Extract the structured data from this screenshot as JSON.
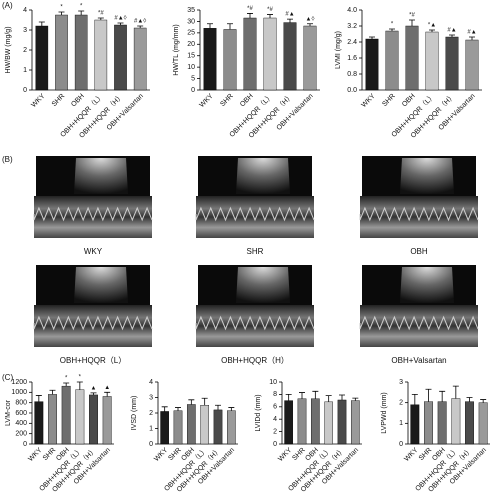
{
  "panels": [
    "(A)",
    "(B)",
    "(C)"
  ],
  "echo_labels": [
    "WKY",
    "SHR",
    "OBH",
    "OBH+HQQR（L）",
    "OBH+HQQR（H）",
    "OBH+Valsartan"
  ],
  "chart_data": [
    {
      "type": "bar",
      "ylabel": "HW/BW (mg/g)",
      "categories": [
        "WKY",
        "SHR",
        "OBH",
        "OBH+HQQR（L）",
        "OBH+HQQR（H）",
        "OBH+Valsartan"
      ],
      "values": [
        3.2,
        3.75,
        3.75,
        3.5,
        3.25,
        3.1
      ],
      "errors": [
        0.2,
        0.15,
        0.2,
        0.1,
        0.1,
        0.1
      ],
      "annotations": [
        "",
        "*",
        "*",
        "*#",
        "#▲◊",
        "#▲◊"
      ],
      "colors": [
        "#1a1a1a",
        "#8c8c8c",
        "#6e6e6e",
        "#c8c8c8",
        "#4a4a4a",
        "#9a9a9a"
      ],
      "ylim": [
        0,
        4
      ],
      "yticks": [
        0,
        1,
        2,
        3,
        4
      ]
    },
    {
      "type": "bar",
      "ylabel": "HW/TL (mg/mm)",
      "categories": [
        "WKY",
        "SHR",
        "OBH",
        "OBH+HQQR（L）",
        "OBH+HQQR（H）",
        "OBH+Valsartan"
      ],
      "values": [
        27,
        26.5,
        31.5,
        31.5,
        29.5,
        28
      ],
      "errors": [
        2,
        2.5,
        2,
        1.5,
        1.5,
        1
      ],
      "annotations": [
        "",
        "",
        "*#",
        "*#",
        "#▲",
        "▲◊"
      ],
      "colors": [
        "#1a1a1a",
        "#8c8c8c",
        "#6e6e6e",
        "#c8c8c8",
        "#4a4a4a",
        "#9a9a9a"
      ],
      "ylim": [
        0,
        35
      ],
      "yticks": [
        0,
        5,
        10,
        15,
        20,
        25,
        30,
        35
      ]
    },
    {
      "type": "bar",
      "ylabel": "LVMI (mg/g)",
      "categories": [
        "WKY",
        "SHR",
        "OBH",
        "OBH+HQQR（L）",
        "OBH+HQQR（H）",
        "OBH+Valsartan"
      ],
      "values": [
        2.55,
        2.95,
        3.2,
        2.9,
        2.65,
        2.5
      ],
      "errors": [
        0.1,
        0.1,
        0.3,
        0.1,
        0.1,
        0.15
      ],
      "annotations": [
        "",
        "*",
        "*#",
        "*▲",
        "#▲",
        "#▲"
      ],
      "colors": [
        "#1a1a1a",
        "#8c8c8c",
        "#6e6e6e",
        "#c8c8c8",
        "#4a4a4a",
        "#9a9a9a"
      ],
      "ylim": [
        0,
        4
      ],
      "yticks": [
        {
          "value": 0,
          "label": "0.0"
        },
        0.8,
        1.6,
        2.4,
        3.2,
        {
          "value": 4,
          "label": "4.0"
        }
      ]
    },
    {
      "type": "bar",
      "ylabel": "LVM-cor",
      "categories": [
        "WKY",
        "SHR",
        "OBH",
        "OBH+HQQR（L）",
        "OBH+HQQR（H）",
        "OBH+Valsartan"
      ],
      "values": [
        820,
        960,
        1120,
        1050,
        950,
        920
      ],
      "errors": [
        120,
        80,
        60,
        150,
        40,
        80
      ],
      "annotations": [
        "",
        "",
        "*",
        "*",
        "▲",
        "▲"
      ],
      "colors": [
        "#1a1a1a",
        "#8c8c8c",
        "#6e6e6e",
        "#c8c8c8",
        "#4a4a4a",
        "#9a9a9a"
      ],
      "ylim": [
        0,
        1200
      ],
      "yticks": [
        0,
        200,
        400,
        600,
        800,
        1000,
        1200
      ]
    },
    {
      "type": "bar",
      "ylabel": "IVSD (mm)",
      "categories": [
        "WKY",
        "SHR",
        "OBH",
        "OBH+HQQR（L）",
        "OBH+HQQR（H）",
        "OBH+Valsartan"
      ],
      "values": [
        2.1,
        2.15,
        2.55,
        2.5,
        2.2,
        2.15
      ],
      "errors": [
        0.3,
        0.2,
        0.3,
        0.45,
        0.3,
        0.2
      ],
      "colors": [
        "#1a1a1a",
        "#8c8c8c",
        "#6e6e6e",
        "#c8c8c8",
        "#4a4a4a",
        "#9a9a9a"
      ],
      "ylim": [
        0,
        4
      ],
      "yticks": [
        0,
        1,
        2,
        3,
        4
      ]
    },
    {
      "type": "bar",
      "ylabel": "LVIDd (mm)",
      "categories": [
        "WKY",
        "SHR",
        "OBH",
        "OBH+HQQR（L）",
        "OBH+HQQR（H）",
        "OBH+Valsartan"
      ],
      "values": [
        7,
        7.3,
        7.3,
        6.8,
        7.1,
        7
      ],
      "errors": [
        1,
        1,
        1.2,
        1,
        0.8,
        0.4
      ],
      "colors": [
        "#1a1a1a",
        "#8c8c8c",
        "#6e6e6e",
        "#c8c8c8",
        "#4a4a4a",
        "#9a9a9a"
      ],
      "ylim": [
        0,
        10
      ],
      "yticks": [
        0,
        2,
        4,
        6,
        8,
        10
      ]
    },
    {
      "type": "bar",
      "ylabel": "LVPWd (mm)",
      "categories": [
        "WKY",
        "SHR",
        "OBH",
        "OBH+HQQR（L）",
        "OBH+HQQR（H）",
        "OBH+Valsartan"
      ],
      "values": [
        1.9,
        2.05,
        2.05,
        2.2,
        2.05,
        2.0
      ],
      "errors": [
        0.5,
        0.6,
        0.5,
        0.6,
        0.2,
        0.15
      ],
      "colors": [
        "#1a1a1a",
        "#8c8c8c",
        "#6e6e6e",
        "#c8c8c8",
        "#4a4a4a",
        "#9a9a9a"
      ],
      "ylim": [
        0,
        3
      ],
      "yticks": [
        0,
        1,
        2,
        3
      ]
    }
  ]
}
